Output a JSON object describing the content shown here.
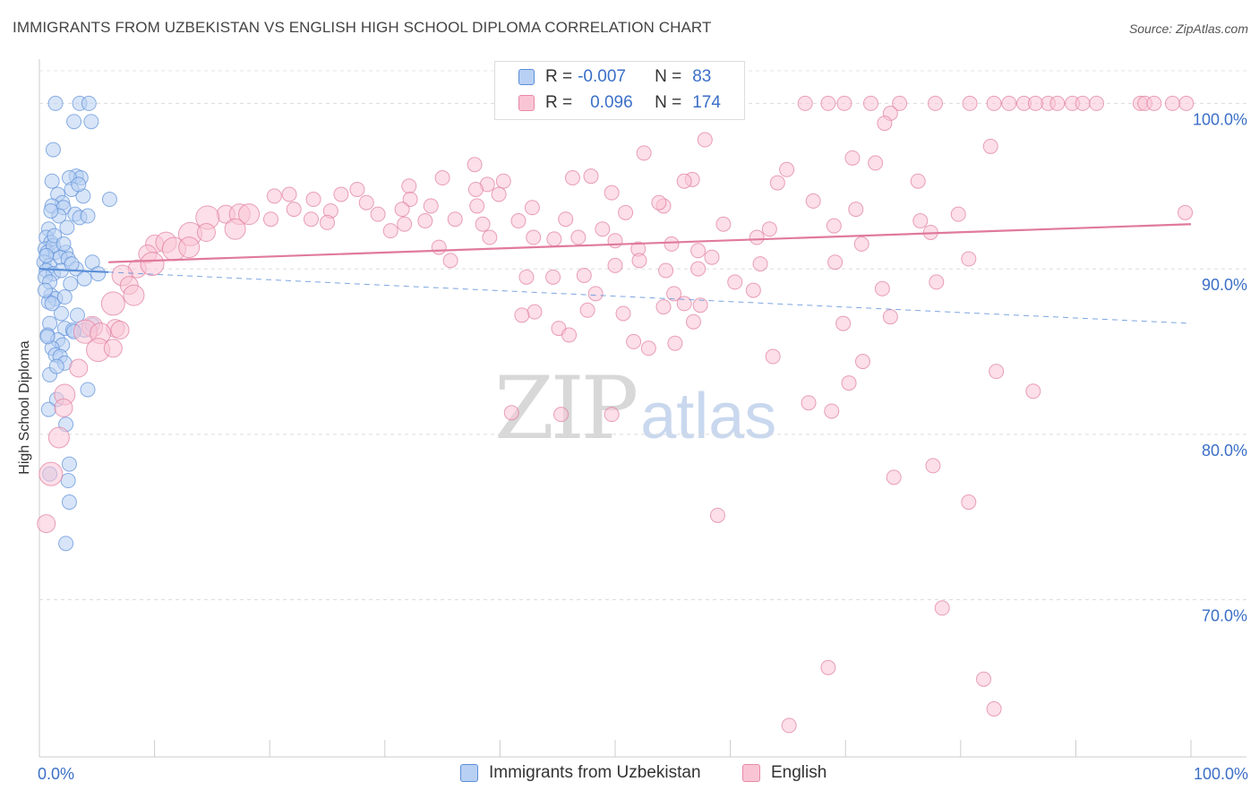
{
  "title": "IMMIGRANTS FROM UZBEKISTAN VS ENGLISH HIGH SCHOOL DIPLOMA CORRELATION CHART",
  "source": "Source: ZipAtlas.com",
  "watermark": {
    "zip": "ZIP",
    "atlas": "atlas"
  },
  "legend": {
    "r_label": "R =",
    "n_label": "N =",
    "rows": [
      {
        "r": "-0.007",
        "n": "83",
        "fill": "#b8d0f3",
        "stroke": "#5b8fd8"
      },
      {
        "r": "0.096",
        "n": "174",
        "fill": "#f9c5d5",
        "stroke": "#e88aa8"
      }
    ]
  },
  "bottom_legend": [
    {
      "label": "Immigrants from Uzbekistan",
      "fill": "#b8d0f3",
      "stroke": "#5b8fd8"
    },
    {
      "label": "English",
      "fill": "#f9c5d5",
      "stroke": "#e88aa8"
    }
  ],
  "chart_data": {
    "type": "scatter",
    "ylabel": "High School Diploma",
    "xlim": [
      0,
      100
    ],
    "ylim": [
      60.5,
      103
    ],
    "x_tick_labels": [
      "0.0%",
      "100.0%"
    ],
    "y_ticks": [
      {
        "value": 100,
        "label": "100.0%"
      },
      {
        "value": 90,
        "label": "90.0%"
      },
      {
        "value": 80,
        "label": "80.0%"
      },
      {
        "value": 70,
        "label": "70.0%"
      }
    ],
    "grid": "horizontal dashed",
    "series": [
      {
        "name": "Immigrants from Uzbekistan",
        "color": "#5b8fd8",
        "fill": "#b8d0f3",
        "trend": {
          "x": [
            0,
            6
          ],
          "y": [
            90.0,
            89.8
          ],
          "dashed_to": [
            100,
            86.7
          ]
        },
        "points": [
          [
            3.5,
            100
          ],
          [
            4.3,
            100
          ],
          [
            1.4,
            100
          ],
          [
            4.5,
            98.9
          ],
          [
            3.0,
            98.9
          ],
          [
            1.2,
            97.2
          ],
          [
            3.2,
            95.6
          ],
          [
            3.6,
            95.5
          ],
          [
            1.1,
            95.3
          ],
          [
            2.6,
            95.5
          ],
          [
            1.6,
            94.5
          ],
          [
            3.8,
            94.4
          ],
          [
            6.1,
            94.2
          ],
          [
            2.0,
            94.0
          ],
          [
            1.1,
            93.8
          ],
          [
            2.1,
            93.7
          ],
          [
            3.1,
            93.3
          ],
          [
            3.5,
            93.1
          ],
          [
            4.2,
            93.2
          ],
          [
            0.8,
            92.4
          ],
          [
            0.6,
            91.9
          ],
          [
            1.0,
            91.6
          ],
          [
            0.5,
            91.2
          ],
          [
            0.7,
            91.0
          ],
          [
            1.4,
            91.0
          ],
          [
            2.3,
            91.0
          ],
          [
            1.8,
            90.7
          ],
          [
            2.5,
            90.6
          ],
          [
            0.4,
            90.4
          ],
          [
            0.9,
            90.2
          ],
          [
            0.6,
            89.9
          ],
          [
            1.2,
            89.7
          ],
          [
            3.2,
            90.0
          ],
          [
            4.6,
            90.4
          ],
          [
            5.1,
            89.7
          ],
          [
            0.5,
            89.5
          ],
          [
            0.9,
            89.2
          ],
          [
            2.7,
            89.1
          ],
          [
            1.0,
            88.4
          ],
          [
            1.4,
            88.2
          ],
          [
            0.8,
            88.0
          ],
          [
            1.9,
            87.3
          ],
          [
            3.3,
            87.2
          ],
          [
            0.9,
            86.7
          ],
          [
            2.2,
            86.4
          ],
          [
            2.9,
            86.3
          ],
          [
            3.9,
            86.3
          ],
          [
            4.6,
            86.6
          ],
          [
            0.7,
            86.0
          ],
          [
            1.6,
            85.7
          ],
          [
            2.0,
            85.4
          ],
          [
            1.1,
            85.2
          ],
          [
            1.4,
            84.8
          ],
          [
            1.8,
            84.7
          ],
          [
            2.2,
            84.3
          ],
          [
            0.9,
            83.6
          ],
          [
            4.2,
            82.7
          ],
          [
            1.5,
            82.1
          ],
          [
            0.8,
            81.5
          ],
          [
            2.3,
            80.6
          ],
          [
            2.6,
            78.2
          ],
          [
            0.9,
            77.6
          ],
          [
            2.5,
            77.2
          ],
          [
            2.6,
            75.9
          ],
          [
            2.3,
            73.4
          ],
          [
            1.2,
            91.4
          ],
          [
            2.8,
            94.8
          ],
          [
            0.6,
            90.8
          ],
          [
            1.7,
            93.2
          ],
          [
            3.9,
            89.4
          ],
          [
            1.3,
            92.0
          ],
          [
            2.4,
            92.5
          ],
          [
            0.5,
            88.7
          ],
          [
            1.1,
            87.9
          ],
          [
            3.0,
            86.2
          ],
          [
            1.9,
            89.9
          ],
          [
            2.1,
            91.5
          ],
          [
            0.7,
            85.9
          ],
          [
            1.5,
            84.1
          ],
          [
            2.8,
            90.3
          ],
          [
            1.0,
            93.5
          ],
          [
            3.4,
            95.1
          ],
          [
            2.2,
            88.3
          ]
        ]
      },
      {
        "name": "English",
        "color": "#e07a9d",
        "fill": "#f9c5d5",
        "trend": {
          "x": [
            6,
            100
          ],
          "y": [
            90.4,
            92.7
          ]
        },
        "points": [
          [
            66.5,
            100
          ],
          [
            68.5,
            100
          ],
          [
            69.9,
            100
          ],
          [
            72.2,
            100
          ],
          [
            74.7,
            100
          ],
          [
            77.8,
            100
          ],
          [
            80.8,
            100
          ],
          [
            82.9,
            100
          ],
          [
            84.2,
            100
          ],
          [
            87.6,
            100
          ],
          [
            88.4,
            100
          ],
          [
            89.7,
            100
          ],
          [
            91.8,
            100
          ],
          [
            95.6,
            100
          ],
          [
            96.0,
            100
          ],
          [
            98.4,
            100
          ],
          [
            99.6,
            100
          ],
          [
            85.5,
            100
          ],
          [
            86.5,
            100
          ],
          [
            90.6,
            100
          ],
          [
            96.8,
            100
          ],
          [
            73.9,
            99.4
          ],
          [
            73.4,
            98.8
          ],
          [
            57.8,
            97.8
          ],
          [
            82.6,
            97.4
          ],
          [
            52.5,
            97.0
          ],
          [
            70.6,
            96.7
          ],
          [
            72.6,
            96.4
          ],
          [
            37.8,
            96.3
          ],
          [
            64.9,
            96.0
          ],
          [
            47.9,
            95.6
          ],
          [
            35.0,
            95.5
          ],
          [
            40.3,
            95.3
          ],
          [
            56.7,
            95.4
          ],
          [
            64.1,
            95.2
          ],
          [
            56.0,
            95.3
          ],
          [
            46.3,
            95.5
          ],
          [
            76.3,
            95.3
          ],
          [
            38.9,
            95.1
          ],
          [
            32.1,
            95.0
          ],
          [
            27.6,
            94.8
          ],
          [
            37.9,
            94.8
          ],
          [
            39.9,
            94.5
          ],
          [
            49.7,
            94.6
          ],
          [
            21.7,
            94.5
          ],
          [
            26.2,
            94.5
          ],
          [
            20.4,
            94.4
          ],
          [
            23.8,
            94.2
          ],
          [
            28.4,
            94.0
          ],
          [
            32.2,
            94.2
          ],
          [
            31.5,
            93.6
          ],
          [
            34.0,
            93.8
          ],
          [
            38.0,
            93.8
          ],
          [
            42.8,
            93.7
          ],
          [
            54.2,
            93.8
          ],
          [
            22.1,
            93.6
          ],
          [
            25.3,
            93.5
          ],
          [
            16.2,
            93.3
          ],
          [
            17.4,
            93.3
          ],
          [
            14.6,
            93.1
          ],
          [
            29.4,
            93.3
          ],
          [
            33.5,
            92.9
          ],
          [
            38.5,
            92.7
          ],
          [
            41.6,
            92.9
          ],
          [
            36.1,
            93.0
          ],
          [
            50.9,
            93.4
          ],
          [
            70.9,
            93.6
          ],
          [
            79.8,
            93.3
          ],
          [
            99.5,
            93.4
          ],
          [
            76.5,
            92.9
          ],
          [
            59.4,
            92.7
          ],
          [
            63.4,
            92.4
          ],
          [
            69.0,
            92.6
          ],
          [
            48.9,
            92.4
          ],
          [
            25.0,
            92.8
          ],
          [
            31.7,
            92.7
          ],
          [
            30.5,
            92.3
          ],
          [
            23.6,
            93.0
          ],
          [
            20.1,
            93.0
          ],
          [
            18.2,
            93.3
          ],
          [
            13.1,
            92.1
          ],
          [
            14.5,
            92.2
          ],
          [
            17.0,
            92.4
          ],
          [
            39.1,
            91.9
          ],
          [
            42.9,
            91.9
          ],
          [
            44.7,
            91.8
          ],
          [
            62.3,
            91.9
          ],
          [
            77.4,
            92.2
          ],
          [
            46.8,
            91.9
          ],
          [
            50.0,
            91.7
          ],
          [
            52.0,
            91.2
          ],
          [
            54.9,
            91.5
          ],
          [
            57.2,
            91.1
          ],
          [
            10.0,
            91.5
          ],
          [
            11.0,
            91.6
          ],
          [
            11.7,
            91.2
          ],
          [
            9.4,
            90.9
          ],
          [
            13.0,
            91.3
          ],
          [
            58.4,
            90.7
          ],
          [
            62.6,
            90.3
          ],
          [
            69.1,
            90.4
          ],
          [
            80.7,
            90.6
          ],
          [
            35.7,
            90.5
          ],
          [
            50.0,
            90.2
          ],
          [
            52.1,
            90.5
          ],
          [
            54.4,
            89.9
          ],
          [
            47.3,
            89.6
          ],
          [
            57.2,
            90.0
          ],
          [
            42.3,
            89.5
          ],
          [
            44.6,
            89.5
          ],
          [
            77.9,
            89.2
          ],
          [
            8.5,
            90.0
          ],
          [
            7.2,
            89.6
          ],
          [
            9.8,
            90.3
          ],
          [
            7.8,
            89.0
          ],
          [
            8.2,
            88.4
          ],
          [
            6.4,
            87.9
          ],
          [
            48.3,
            88.5
          ],
          [
            55.1,
            88.5
          ],
          [
            73.2,
            88.8
          ],
          [
            62.0,
            88.7
          ],
          [
            57.4,
            87.8
          ],
          [
            56.0,
            87.9
          ],
          [
            54.2,
            87.7
          ],
          [
            43.0,
            87.4
          ],
          [
            41.9,
            87.2
          ],
          [
            50.7,
            87.3
          ],
          [
            47.6,
            87.5
          ],
          [
            56.8,
            86.8
          ],
          [
            73.9,
            87.1
          ],
          [
            69.8,
            86.7
          ],
          [
            45.1,
            86.4
          ],
          [
            6.6,
            86.4
          ],
          [
            4.6,
            86.5
          ],
          [
            4.0,
            86.2
          ],
          [
            7.0,
            86.3
          ],
          [
            5.3,
            86.1
          ],
          [
            46.0,
            86.0
          ],
          [
            51.6,
            85.6
          ],
          [
            52.9,
            85.2
          ],
          [
            5.1,
            85.1
          ],
          [
            6.4,
            85.2
          ],
          [
            55.2,
            85.5
          ],
          [
            63.7,
            84.7
          ],
          [
            3.4,
            84.0
          ],
          [
            71.5,
            84.4
          ],
          [
            83.1,
            83.8
          ],
          [
            70.3,
            83.1
          ],
          [
            2.2,
            82.4
          ],
          [
            86.3,
            82.6
          ],
          [
            2.1,
            81.6
          ],
          [
            41.0,
            81.3
          ],
          [
            45.3,
            81.2
          ],
          [
            49.7,
            81.2
          ],
          [
            1.7,
            79.8
          ],
          [
            66.8,
            81.9
          ],
          [
            68.8,
            81.4
          ],
          [
            77.6,
            78.1
          ],
          [
            1.0,
            77.6
          ],
          [
            74.2,
            77.4
          ],
          [
            80.7,
            75.9
          ],
          [
            58.9,
            75.1
          ],
          [
            0.6,
            74.6
          ],
          [
            78.4,
            69.5
          ],
          [
            68.5,
            65.9
          ],
          [
            82.0,
            65.2
          ],
          [
            65.1,
            62.4
          ],
          [
            82.9,
            63.4
          ],
          [
            71.4,
            91.5
          ],
          [
            53.8,
            94.0
          ],
          [
            67.2,
            94.1
          ],
          [
            45.7,
            93.0
          ],
          [
            34.7,
            91.3
          ],
          [
            60.4,
            89.2
          ]
        ]
      }
    ]
  }
}
